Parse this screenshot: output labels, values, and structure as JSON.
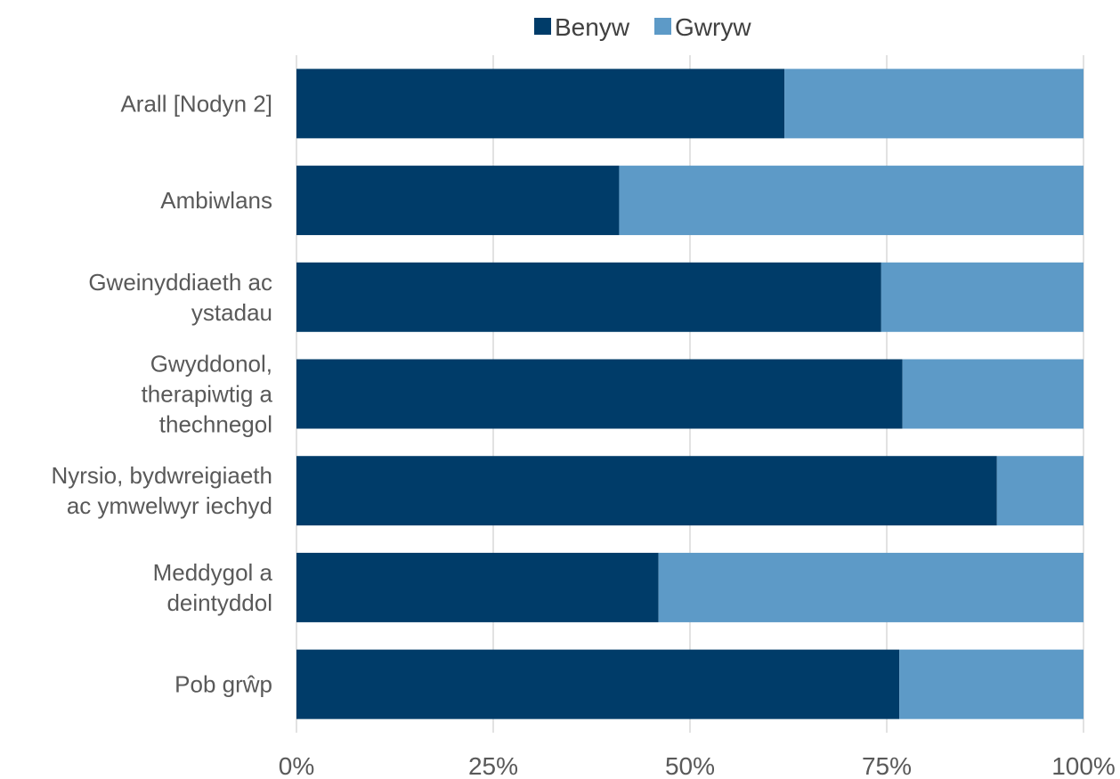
{
  "chart_data": {
    "type": "bar",
    "orientation": "horizontal",
    "stacked": "percent",
    "title": "",
    "xlabel": "",
    "ylabel": "",
    "xlim": [
      0,
      100
    ],
    "x_ticks": [
      "0%",
      "25%",
      "50%",
      "75%",
      "100%"
    ],
    "grid": "vertical",
    "legend_position": "top",
    "categories": [
      [
        "Arall [Nodyn 2]"
      ],
      [
        "Ambiwlans"
      ],
      [
        "Gweinyddiaeth ac",
        "ystadau"
      ],
      [
        "Gwyddonol,",
        "therapiwtig a",
        "thechnegol"
      ],
      [
        "Nyrsio, bydwreigiaeth",
        "ac ymwelwyr iechyd"
      ],
      [
        "Meddygol a",
        "deintyddol"
      ],
      [
        "Pob grŵp"
      ]
    ],
    "series": [
      {
        "name": "Benyw",
        "color": "#003c69",
        "values": [
          62,
          41,
          74.3,
          77,
          89,
          46,
          76.6
        ]
      },
      {
        "name": "Gwryw",
        "color": "#5d9ac7",
        "values": [
          38,
          59,
          25.7,
          23,
          11,
          54,
          23.4
        ]
      }
    ]
  }
}
